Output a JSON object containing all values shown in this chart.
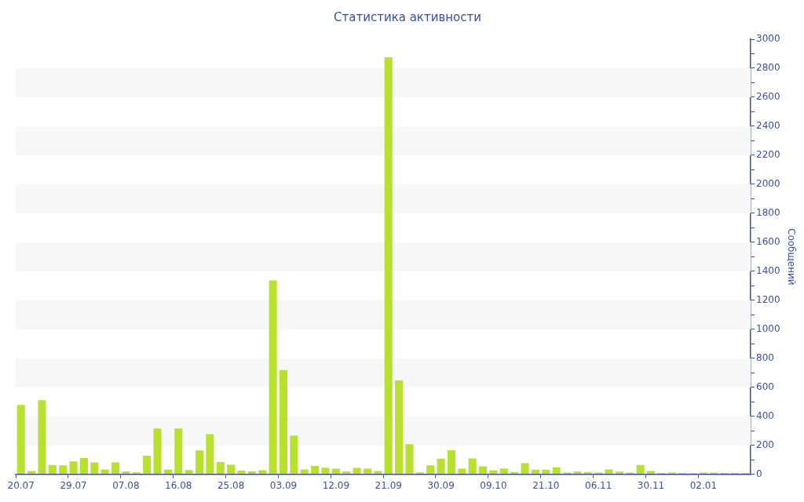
{
  "chart_data": {
    "type": "bar",
    "title": "Статистика активности",
    "ylabel": "Сообщений",
    "categories": [
      "20.07",
      null,
      null,
      null,
      null,
      "29.07",
      null,
      null,
      null,
      null,
      "07.08",
      null,
      null,
      null,
      null,
      "16.08",
      null,
      null,
      null,
      null,
      "25.08",
      null,
      null,
      null,
      null,
      "03.09",
      null,
      null,
      null,
      null,
      "12.09",
      null,
      null,
      null,
      null,
      "21.09",
      null,
      null,
      null,
      null,
      "30.09",
      null,
      null,
      null,
      null,
      "09.10",
      null,
      null,
      null,
      null,
      "21.10",
      null,
      null,
      null,
      null,
      "06.11",
      null,
      null,
      null,
      null,
      "30.11",
      null,
      null,
      null,
      null,
      "02.01",
      null,
      null,
      null,
      null
    ],
    "values": [
      478,
      22,
      511,
      64,
      62,
      89,
      111,
      82,
      33,
      82,
      20,
      13,
      127,
      316,
      33,
      316,
      29,
      164,
      276,
      85,
      65,
      25,
      20,
      27,
      1336,
      718,
      267,
      33,
      58,
      45,
      38,
      20,
      44,
      38,
      22,
      2875,
      647,
      207,
      13,
      62,
      107,
      165,
      38,
      109,
      55,
      27,
      40,
      16,
      76,
      31,
      31,
      47,
      11,
      18,
      16,
      11,
      33,
      18,
      11,
      64,
      22,
      9,
      11,
      9,
      7,
      11,
      11,
      9,
      9,
      9
    ],
    "color": "#b8e02e",
    "ylim": [
      0,
      3000
    ],
    "yticks": [
      0,
      {
        "value": 100,
        "label": null
      },
      200,
      {
        "value": 300,
        "label": null
      },
      400,
      {
        "value": 500,
        "label": null
      },
      600,
      {
        "value": 700,
        "label": null
      },
      800,
      {
        "value": 900,
        "label": null
      },
      1000,
      {
        "value": 1100,
        "label": null
      },
      1200,
      {
        "value": 1300,
        "label": null
      },
      1400,
      {
        "value": 1500,
        "label": null
      },
      1600,
      {
        "value": 1700,
        "label": null
      },
      1800,
      {
        "value": 1900,
        "label": null
      },
      2000,
      {
        "value": 2100,
        "label": null
      },
      2200,
      {
        "value": 2300,
        "label": null
      },
      2400,
      {
        "value": 2500,
        "label": null
      },
      2600,
      {
        "value": 2700,
        "label": null
      },
      2800,
      {
        "value": 2900,
        "label": null
      },
      3000
    ],
    "bands": [
      {
        "axis": "y",
        "from": 200,
        "to": 400,
        "color": "#f7f7f7"
      },
      {
        "axis": "y",
        "from": 600,
        "to": 800,
        "color": "#f7f7f7"
      },
      {
        "axis": "y",
        "from": 1000,
        "to": 1200,
        "color": "#f7f7f7"
      },
      {
        "axis": "y",
        "from": 1400,
        "to": 1600,
        "color": "#f7f7f7"
      },
      {
        "axis": "y",
        "from": 1800,
        "to": 2000,
        "color": "#f7f7f7"
      },
      {
        "axis": "y",
        "from": 2200,
        "to": 2400,
        "color": "#f7f7f7"
      },
      {
        "axis": "y",
        "from": 2600,
        "to": 2800,
        "color": "#f7f7f7"
      }
    ],
    "legend": false
  }
}
